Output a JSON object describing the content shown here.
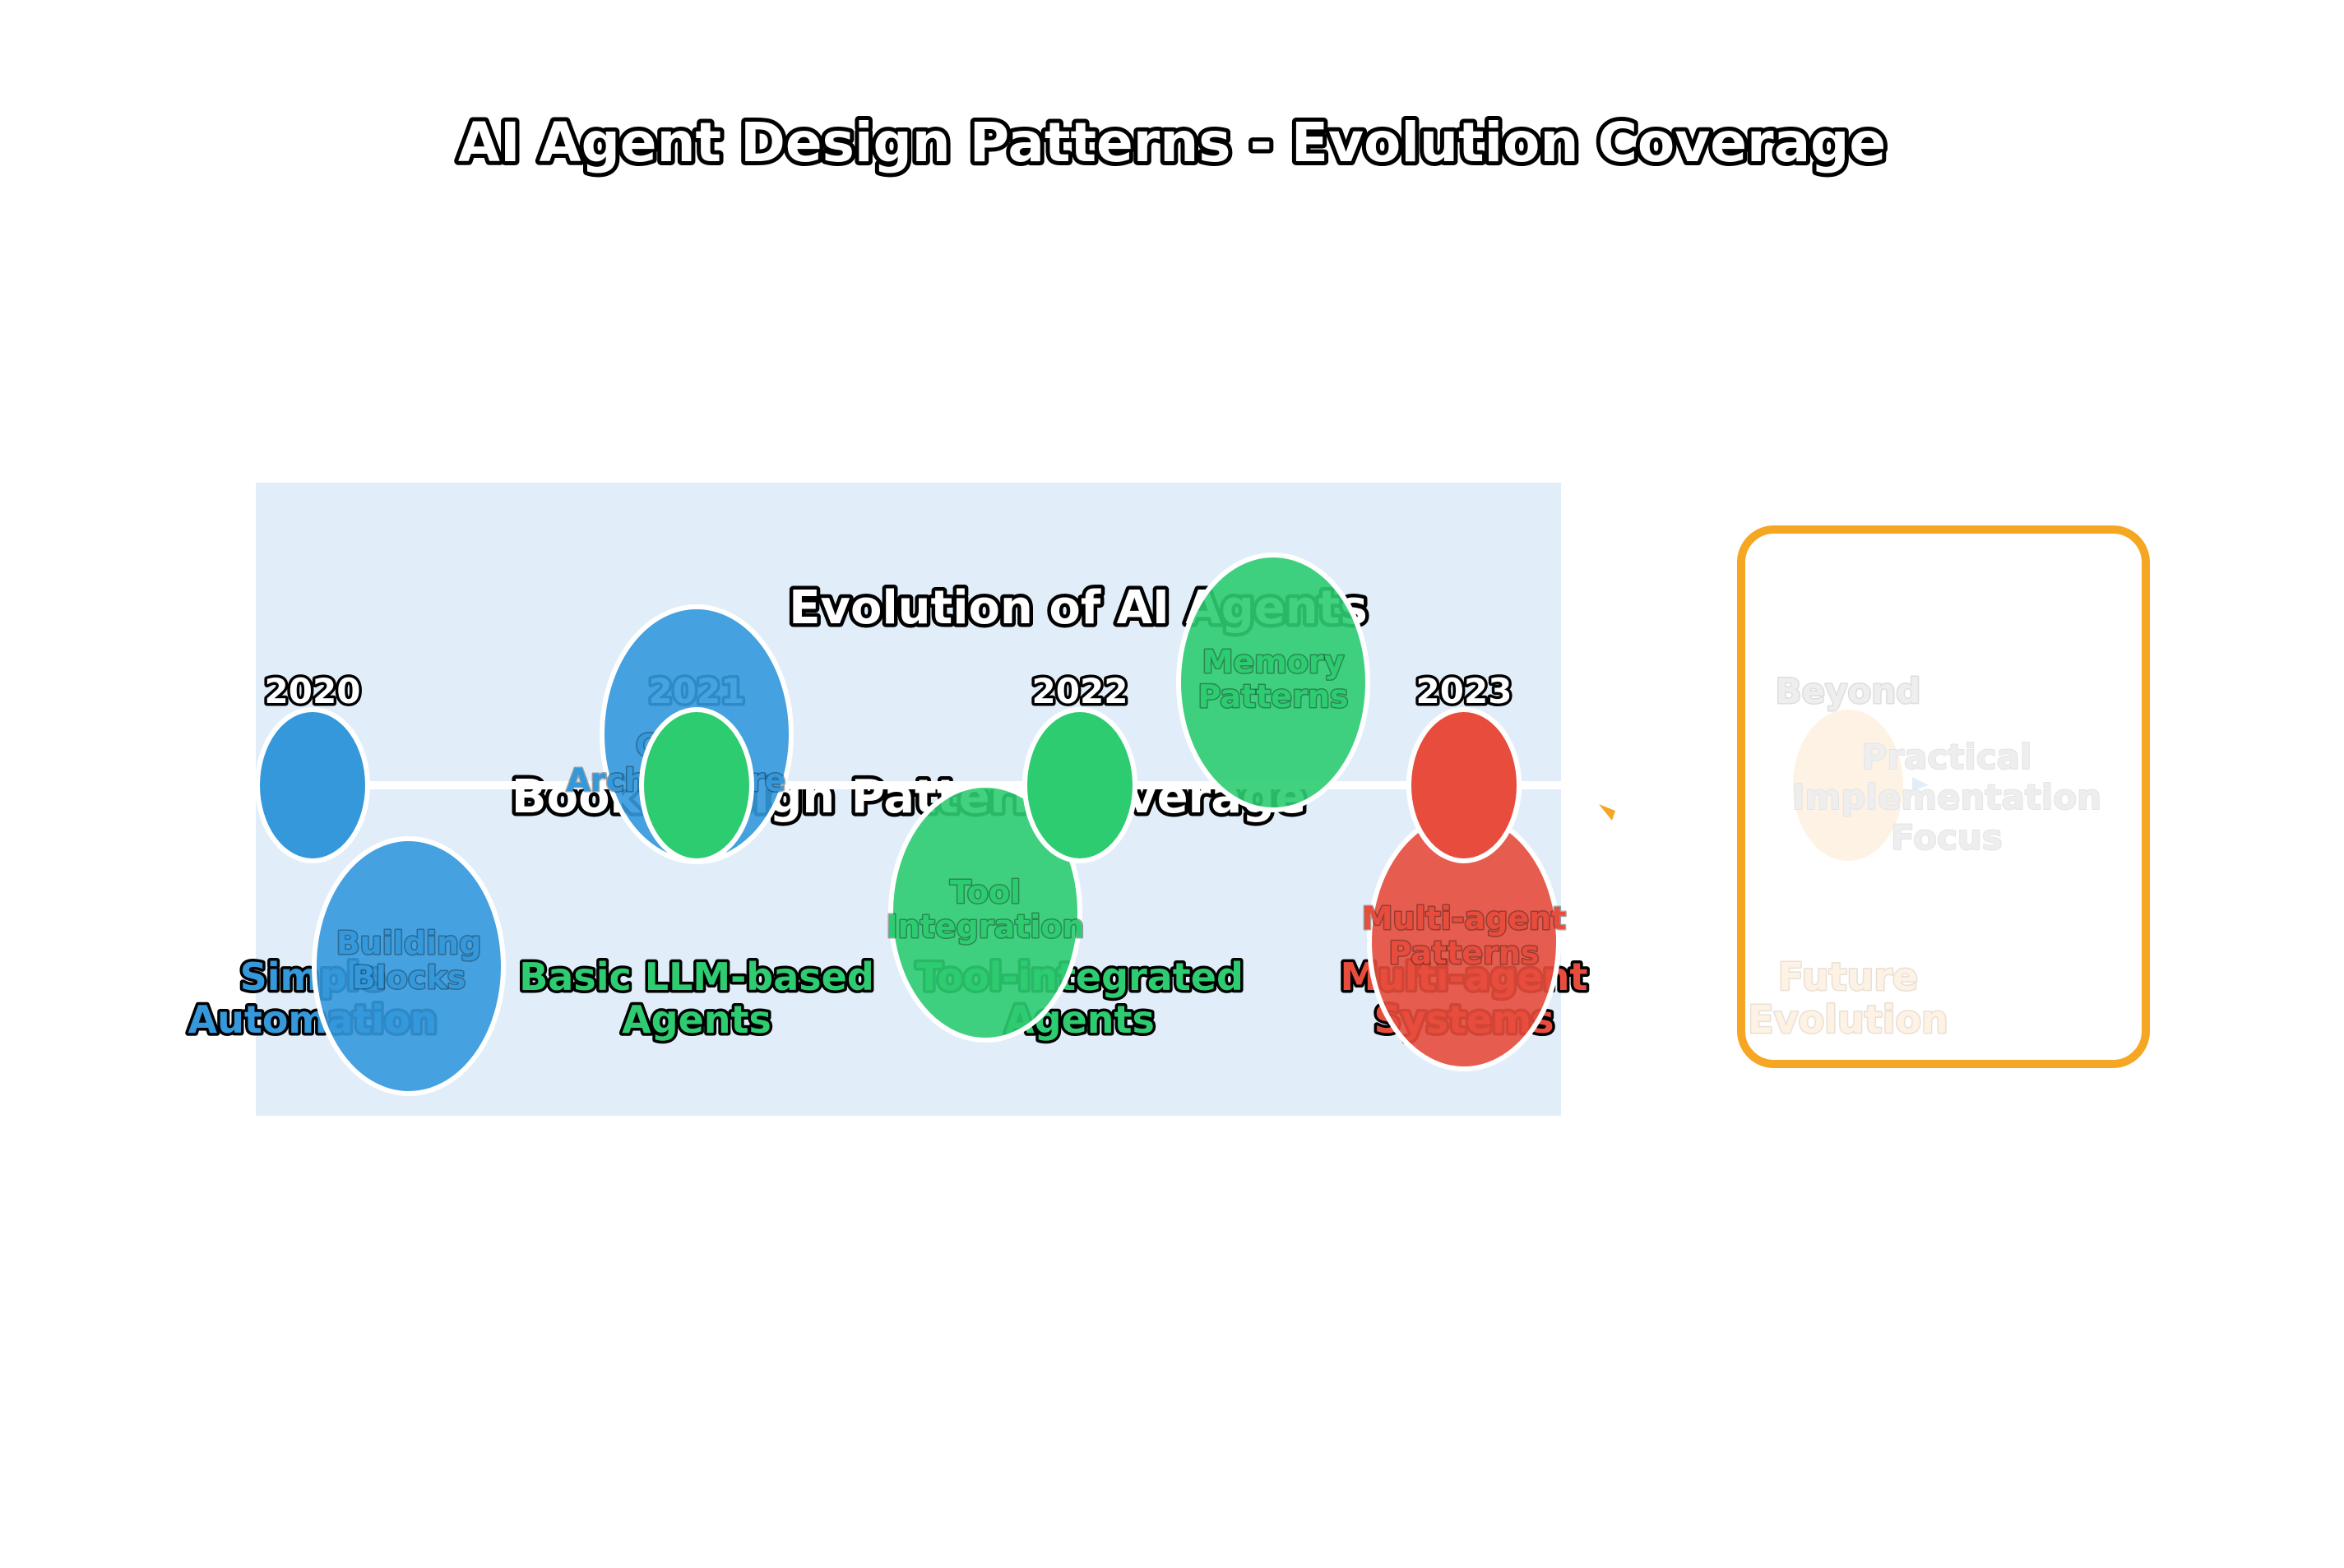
{
  "title": "AI Agent Design Patterns - Evolution Coverage",
  "panel": {
    "heading": "Evolution of AI Agents",
    "subheading": "Book Design Pattern Coverage",
    "background": "#e1eefa"
  },
  "timeline": [
    {
      "year": "2020",
      "label": "Simple\nAutomation",
      "color": "#3498db"
    },
    {
      "year": "2021",
      "label": "Basic LLM-based\nAgents",
      "color": "#2ecc71"
    },
    {
      "year": "2022",
      "label": "Tool-integrated\nAgents",
      "color": "#2ecc71"
    },
    {
      "year": "2023",
      "label": "Multi-agent\nSystems",
      "color": "#e74c3c"
    }
  ],
  "future": {
    "year": "Beyond",
    "label": "Future\nEvolution",
    "focus": "Practical\nImplementation\nFocus",
    "border_color": "#f5a623",
    "fill": "#fdf2e4"
  },
  "coverage": [
    {
      "label": "Core\nArchitecture",
      "color": "#3498db"
    },
    {
      "label": "Building\nBlocks",
      "color": "#3498db"
    },
    {
      "label": "Tool\nIntegration",
      "color": "#2ecc71"
    },
    {
      "label": "Memory\nPatterns",
      "color": "#2ecc71"
    },
    {
      "label": "Multi-agent\nPatterns",
      "color": "#e74c3c"
    }
  ]
}
